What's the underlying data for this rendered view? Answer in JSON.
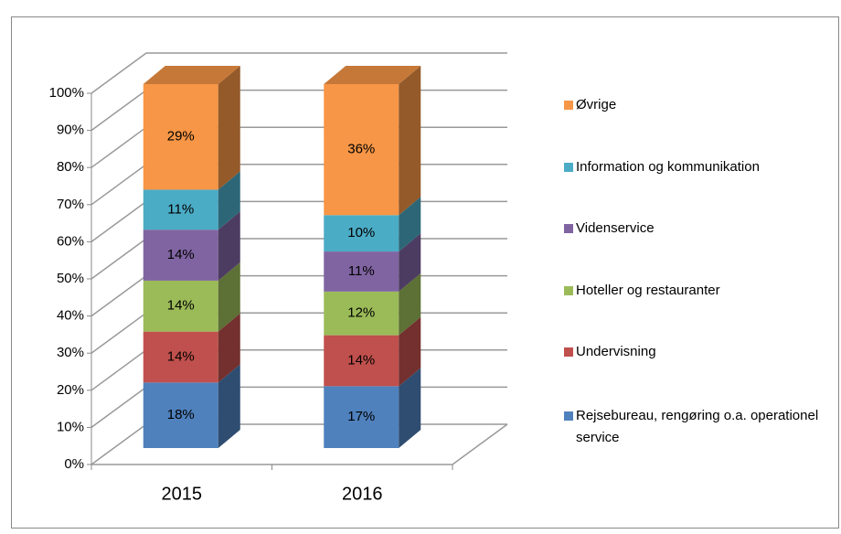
{
  "chart_data": {
    "type": "bar3d_stacked",
    "categories": [
      "2015",
      "2016"
    ],
    "series": [
      {
        "name": "Rejsebureau, rengøring o.a. operationel service",
        "color": "#4f81bd",
        "values": [
          18,
          17
        ],
        "value_labels": [
          "18%",
          "17%"
        ]
      },
      {
        "name": "Undervisning",
        "color": "#c0504d",
        "values": [
          14,
          14
        ],
        "value_labels": [
          "14%",
          "14%"
        ]
      },
      {
        "name": "Hoteller og restauranter",
        "color": "#9bbb59",
        "values": [
          14,
          12
        ],
        "value_labels": [
          "14%",
          "12%"
        ]
      },
      {
        "name": "Videnservice",
        "color": "#8064a2",
        "values": [
          14,
          11
        ],
        "value_labels": [
          "14%",
          "11%"
        ]
      },
      {
        "name": "Information og kommunikation",
        "color": "#4bacc6",
        "values": [
          11,
          10
        ],
        "value_labels": [
          "11%",
          "10%"
        ]
      },
      {
        "name": "Øvrige",
        "color": "#f79646",
        "values": [
          29,
          36
        ],
        "value_labels": [
          "29%",
          "36%"
        ]
      }
    ],
    "ylim": [
      0,
      100
    ],
    "yticks": [
      {
        "value": 0,
        "label": "0%"
      },
      {
        "value": 10,
        "label": "10%"
      },
      {
        "value": 20,
        "label": "20%"
      },
      {
        "value": 30,
        "label": "30%"
      },
      {
        "value": 40,
        "label": "40%"
      },
      {
        "value": 50,
        "label": "50%"
      },
      {
        "value": 60,
        "label": "60%"
      },
      {
        "value": 70,
        "label": "70%"
      },
      {
        "value": 80,
        "label": "80%"
      },
      {
        "value": 90,
        "label": "90%"
      },
      {
        "value": 100,
        "label": "100%"
      }
    ],
    "grid": true,
    "legend": "right"
  }
}
